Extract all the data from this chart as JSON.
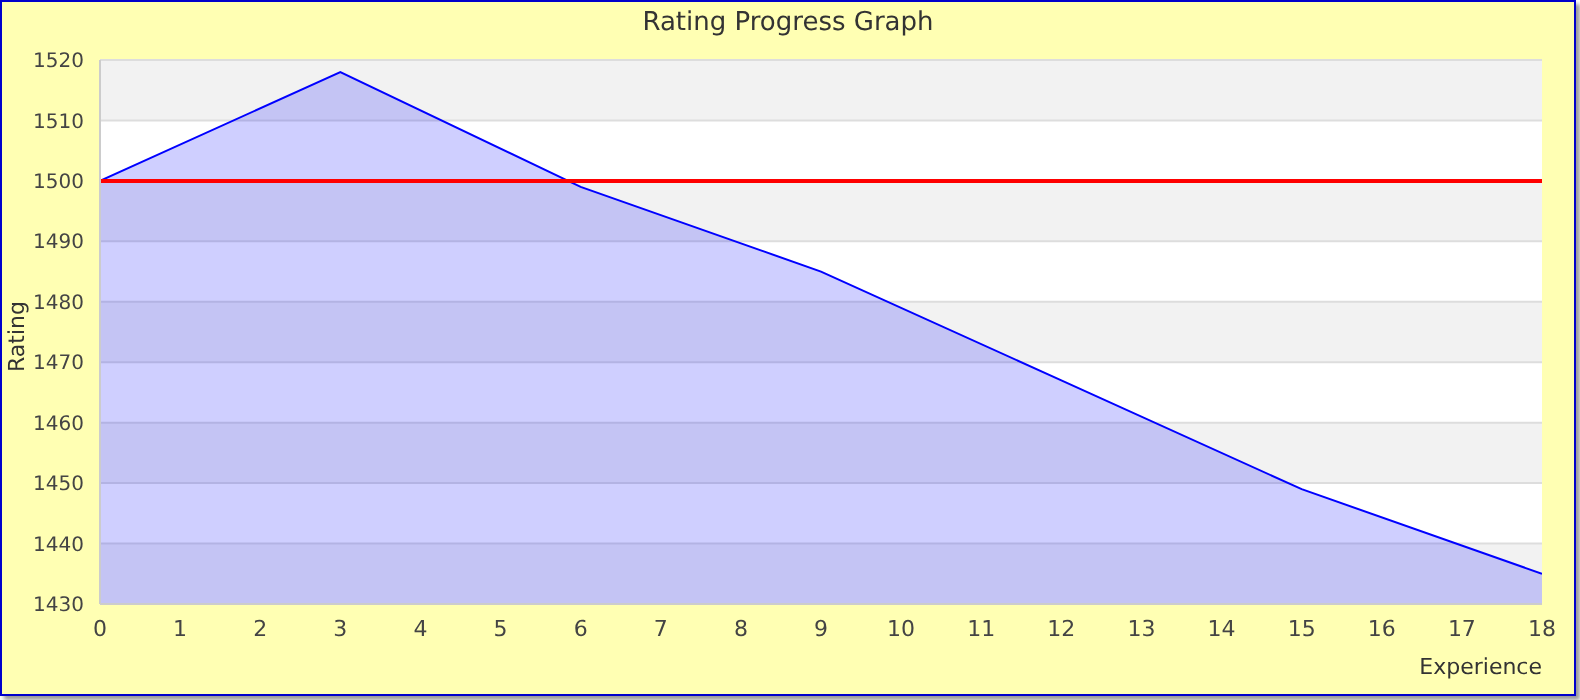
{
  "chart_data": {
    "type": "area",
    "title": "Rating Progress Graph",
    "xlabel": "Experience",
    "ylabel": "Rating",
    "x": [
      0,
      3,
      6,
      9,
      12,
      15,
      18
    ],
    "series": [
      {
        "color": "#0000ff",
        "values": [
          1500,
          1518,
          1499,
          1485,
          1467,
          1449,
          1435
        ]
      }
    ],
    "xlim": [
      0,
      18
    ],
    "xticks": [
      0,
      1,
      2,
      3,
      4,
      5,
      6,
      7,
      8,
      9,
      10,
      11,
      12,
      13,
      14,
      15,
      16,
      17,
      18
    ],
    "ylim": [
      1430,
      1520
    ],
    "yticks": [
      1430,
      1440,
      1450,
      1460,
      1470,
      1480,
      1490,
      1500,
      1510,
      1520
    ],
    "ref_lines": [
      {
        "axis": "y",
        "value": 1500,
        "color": "#ff0000"
      }
    ],
    "grid": "y",
    "legend": false
  }
}
